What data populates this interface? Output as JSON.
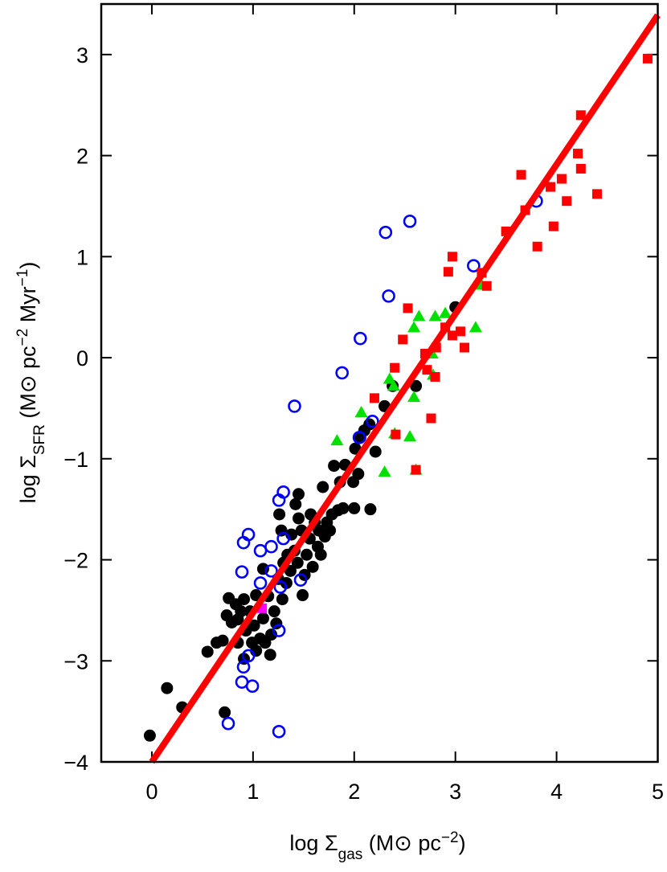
{
  "chart_data": {
    "type": "scatter",
    "xlabel": [
      {
        "text": "log Σ",
        "shift": "none"
      },
      {
        "text": "gas",
        "shift": "sub"
      },
      {
        "text": " (M⊙ pc",
        "shift": "none"
      },
      {
        "text": "−2",
        "shift": "super"
      },
      {
        "text": ")",
        "shift": "none"
      }
    ],
    "ylabel": [
      {
        "text": "log Σ",
        "shift": "none"
      },
      {
        "text": "SFR",
        "shift": "sub"
      },
      {
        "text": " (M⊙ pc",
        "shift": "none"
      },
      {
        "text": "−2",
        "shift": "super"
      },
      {
        "text": " Myr",
        "shift": "none"
      },
      {
        "text": "−1",
        "shift": "super"
      },
      {
        "text": ")",
        "shift": "none"
      }
    ],
    "xlim": [
      -0.5,
      5
    ],
    "ylim": [
      -4,
      3.5
    ],
    "xticks": [
      0,
      1,
      2,
      3,
      4,
      5
    ],
    "yticks": [
      {
        "value": -4,
        "label": "−4"
      },
      {
        "value": -3,
        "label": "−3"
      },
      {
        "value": -2,
        "label": "−2"
      },
      {
        "value": -1,
        "label": "−1"
      },
      0,
      1,
      2,
      3
    ],
    "series": [
      {
        "color": "#000000",
        "marker": "circle",
        "x": [
          -0.02,
          0.15,
          0.3,
          0.72,
          0.55,
          0.64,
          0.7,
          0.74,
          0.79,
          0.76,
          0.83,
          0.85,
          0.88,
          0.91,
          0.93,
          0.97,
          0.99,
          1.01,
          1.03,
          1.03,
          1.07,
          1.1,
          1.12,
          1.15,
          1.18,
          1.21,
          1.23,
          1.25,
          1.29,
          1.3,
          1.33,
          1.34,
          1.37,
          1.38,
          1.41,
          1.44,
          1.45,
          1.48,
          1.49,
          1.51,
          1.53,
          1.56,
          1.57,
          1.59,
          1.61,
          1.64,
          1.65,
          1.67,
          1.69,
          1.71,
          1.73,
          1.76,
          1.78,
          1.8,
          1.84,
          1.89,
          1.91,
          1.99,
          2.0,
          2.01,
          2.06,
          2.1,
          2.15,
          2.16,
          2.21,
          2.3,
          2.38,
          2.61,
          3.0,
          1.45,
          1.26,
          1.28,
          1.1,
          0.85,
          0.91,
          1.42,
          1.86,
          2.04,
          1.17
        ],
        "values": [
          -3.74,
          -3.27,
          -3.46,
          -3.51,
          -2.91,
          -2.82,
          -2.8,
          -2.55,
          -2.62,
          -2.38,
          -2.44,
          -2.59,
          -2.51,
          -2.39,
          -2.7,
          -2.51,
          -2.82,
          -2.65,
          -2.35,
          -2.9,
          -2.78,
          -2.58,
          -2.82,
          -2.36,
          -2.74,
          -2.51,
          -2.63,
          -2.19,
          -2.39,
          -2.03,
          -2.23,
          -1.95,
          -2.11,
          -1.75,
          -1.91,
          -2.03,
          -1.59,
          -1.71,
          -2.35,
          -2.15,
          -1.95,
          -1.79,
          -1.55,
          -2.07,
          -1.63,
          -1.87,
          -1.71,
          -1.95,
          -1.28,
          -1.77,
          -1.63,
          -1.71,
          -1.55,
          -1.07,
          -1.51,
          -1.49,
          -1.06,
          -1.23,
          -1.49,
          -0.9,
          -0.79,
          -0.72,
          -0.66,
          -1.5,
          -0.93,
          -0.48,
          -0.28,
          -0.28,
          0.5,
          -1.35,
          -1.55,
          -1.71,
          -2.09,
          -2.82,
          -2.98,
          -1.45,
          -1.23,
          -1.15,
          -2.94
        ]
      },
      {
        "color": "#0000ff",
        "marker": "open-circle",
        "x": [
          0.755,
          1.256,
          0.994,
          0.89,
          0.906,
          0.954,
          1.256,
          0.89,
          1.073,
          1.18,
          1.27,
          0.906,
          0.954,
          1.073,
          1.18,
          1.3,
          1.3,
          1.256,
          1.47,
          2.18,
          2.05,
          2.06,
          1.88,
          1.41,
          2.34,
          2.31,
          2.55,
          3.18,
          3.8
        ],
        "values": [
          -3.62,
          -3.7,
          -3.25,
          -3.21,
          -3.06,
          -2.95,
          -2.7,
          -2.12,
          -2.23,
          -2.11,
          -2.27,
          -1.83,
          -1.75,
          -1.91,
          -1.87,
          -1.79,
          -1.33,
          -1.41,
          -2.2,
          -0.63,
          -0.79,
          0.19,
          -0.15,
          -0.48,
          0.61,
          1.24,
          1.35,
          0.91,
          1.55
        ]
      },
      {
        "color": "#00e000",
        "marker": "triangle",
        "x": [
          1.83,
          2.07,
          2.3,
          2.35,
          2.39,
          2.4,
          2.55,
          2.59,
          2.59,
          2.64,
          2.61,
          2.8,
          2.9,
          2.78,
          3.2,
          3.26,
          2.77
        ],
        "values": [
          -0.82,
          -0.54,
          -1.13,
          -0.21,
          -0.28,
          -0.75,
          -0.78,
          -0.39,
          0.3,
          0.41,
          -1.11,
          0.41,
          0.44,
          -0.17,
          0.3,
          0.72,
          0.04
        ]
      },
      {
        "color": "#ff0000",
        "marker": "square",
        "x": [
          2.2,
          2.4,
          2.41,
          2.48,
          2.53,
          2.61,
          2.7,
          2.72,
          2.76,
          2.8,
          2.81,
          2.9,
          2.93,
          2.97,
          2.97,
          3.05,
          3.09,
          3.26,
          3.31,
          3.5,
          3.69,
          3.65,
          3.81,
          3.94,
          3.97,
          4.05,
          4.1,
          4.21,
          4.24,
          4.24,
          4.4,
          4.9
        ],
        "values": [
          -0.4,
          -0.1,
          -0.76,
          0.18,
          0.49,
          -1.11,
          0.04,
          -0.12,
          -0.6,
          -0.19,
          0.1,
          0.3,
          0.85,
          1.0,
          0.22,
          0.26,
          0.1,
          0.84,
          0.71,
          1.25,
          1.46,
          1.81,
          1.1,
          1.69,
          1.3,
          1.77,
          1.55,
          2.02,
          1.87,
          2.4,
          1.62,
          2.96
        ]
      },
      {
        "color": "#ff00ff",
        "marker": "square",
        "x": [
          1.09
        ],
        "values": [
          -2.48
        ]
      }
    ],
    "fit_line": {
      "x": [
        0,
        5
      ],
      "y": [
        -4,
        3.39
      ],
      "color": "#ff0000"
    }
  }
}
